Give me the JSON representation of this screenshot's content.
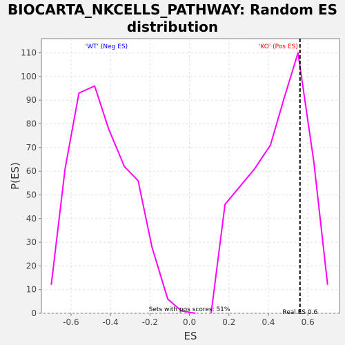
{
  "title": "BIOCARTA_NKCELLS_PATHWAY: Random ES distribution",
  "chart_data": {
    "type": "line",
    "title": "BIOCARTA_NKCELLS_PATHWAY: Random ES distribution",
    "xlabel": "ES",
    "ylabel": "P(ES)",
    "xlim": [
      -0.75,
      0.76
    ],
    "ylim": [
      0,
      116
    ],
    "xticks": [
      -0.6,
      -0.4,
      -0.2,
      0.0,
      0.2,
      0.4,
      0.6
    ],
    "xtick_labels": [
      "-0.6",
      "-0.4",
      "-0.2",
      "0.0",
      "0.2",
      "0.4",
      "0.6"
    ],
    "yticks": [
      0,
      10,
      20,
      30,
      40,
      50,
      60,
      70,
      80,
      90,
      100,
      110
    ],
    "grid": true,
    "series": [
      {
        "color": "#ff00ff",
        "segments": [
          {
            "x": [
              -0.7,
              -0.63,
              -0.56,
              -0.48,
              -0.41,
              -0.33,
              -0.26,
              -0.19,
              -0.11,
              -0.04,
              0.03
            ],
            "y": [
              12,
              61,
              93,
              96,
              78,
              62,
              56,
              28,
              6,
              1,
              0
            ]
          },
          {
            "x": [
              0.11,
              0.18,
              0.26,
              0.33,
              0.41,
              0.48,
              0.55,
              0.63,
              0.7
            ],
            "y": [
              0,
              46,
              54,
              61,
              71,
              91,
              110,
              64,
              12
            ]
          }
        ]
      }
    ],
    "annotations": {
      "neg_label": "'WT' (Neg ES)",
      "pos_label": "'KO' (Pos ES)",
      "neg_color": "#0000ff",
      "pos_color": "#ff0000",
      "sets_text": "Sets with pos scores: 51%",
      "real_es_text": "Real ES 0.6",
      "real_es": 0.56
    }
  }
}
